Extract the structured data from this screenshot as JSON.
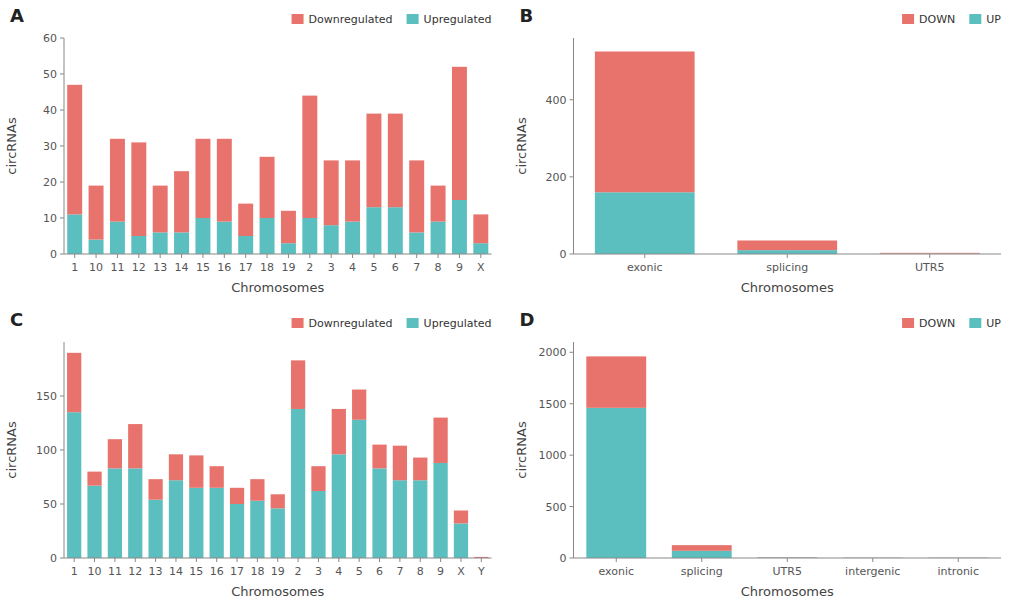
{
  "chart_data": [
    {
      "type": "bar",
      "stacked": true,
      "title": "A",
      "xlabel": "Chromosomes",
      "ylabel": "circRNAs",
      "categories": [
        "1",
        "10",
        "11",
        "12",
        "13",
        "14",
        "15",
        "16",
        "17",
        "18",
        "19",
        "2",
        "3",
        "4",
        "5",
        "6",
        "7",
        "8",
        "9",
        "X"
      ],
      "series": [
        {
          "name": "Upregulated",
          "color": "#5BBFBF",
          "values": [
            11,
            4,
            9,
            5,
            6,
            6,
            10,
            9,
            5,
            10,
            3,
            10,
            8,
            9,
            13,
            13,
            6,
            9,
            15,
            3
          ]
        },
        {
          "name": "Downregulated",
          "color": "#E8736C",
          "values": [
            36,
            15,
            23,
            26,
            13,
            17,
            22,
            23,
            9,
            17,
            9,
            34,
            18,
            17,
            26,
            26,
            20,
            10,
            37,
            8
          ]
        }
      ],
      "ylim": [
        0,
        60
      ],
      "yticks": [
        0,
        10,
        20,
        30,
        40,
        50,
        60
      ],
      "legend": "upper right",
      "grid": false
    },
    {
      "type": "bar",
      "stacked": true,
      "title": "B",
      "xlabel": "Chromosomes",
      "ylabel": "circRNAs",
      "categories": [
        "exonic",
        "splicing",
        "UTR5"
      ],
      "series": [
        {
          "name": "UP",
          "color": "#5BBFBF",
          "values": [
            160,
            10,
            1
          ]
        },
        {
          "name": "DOWN",
          "color": "#E8736C",
          "values": [
            365,
            25,
            2
          ]
        }
      ],
      "ylim": [
        0,
        560
      ],
      "yticks": [
        0,
        200,
        400
      ],
      "legend": "upper right",
      "grid": false
    },
    {
      "type": "bar",
      "stacked": true,
      "title": "C",
      "xlabel": "Chromosomes",
      "ylabel": "circRNAs",
      "categories": [
        "1",
        "10",
        "11",
        "12",
        "13",
        "14",
        "15",
        "16",
        "17",
        "18",
        "19",
        "2",
        "3",
        "4",
        "5",
        "6",
        "7",
        "8",
        "9",
        "X",
        "Y"
      ],
      "series": [
        {
          "name": "Upregulated",
          "color": "#5BBFBF",
          "values": [
            135,
            67,
            83,
            83,
            54,
            72,
            65,
            65,
            50,
            53,
            46,
            138,
            62,
            96,
            128,
            83,
            72,
            72,
            88,
            32,
            0
          ]
        },
        {
          "name": "Downregulated",
          "color": "#E8736C",
          "values": [
            55,
            13,
            27,
            41,
            19,
            24,
            30,
            20,
            15,
            20,
            13,
            45,
            23,
            42,
            28,
            22,
            32,
            21,
            42,
            12,
            1
          ]
        }
      ],
      "ylim": [
        0,
        200
      ],
      "yticks": [
        0,
        50,
        100,
        150
      ],
      "legend": "upper right",
      "grid": false
    },
    {
      "type": "bar",
      "stacked": true,
      "title": "D",
      "xlabel": "Chromosomes",
      "ylabel": "circRNAs",
      "categories": [
        "exonic",
        "splicing",
        "UTR5",
        "intergenic",
        "intronic"
      ],
      "series": [
        {
          "name": "UP",
          "color": "#5BBFBF",
          "values": [
            1460,
            70,
            5,
            2,
            2
          ]
        },
        {
          "name": "DOWN",
          "color": "#E8736C",
          "values": [
            500,
            55,
            3,
            2,
            2
          ]
        }
      ],
      "ylim": [
        0,
        2100
      ],
      "yticks": [
        0,
        500,
        1000,
        1500,
        2000
      ],
      "legend": "upper right",
      "grid": false
    }
  ]
}
